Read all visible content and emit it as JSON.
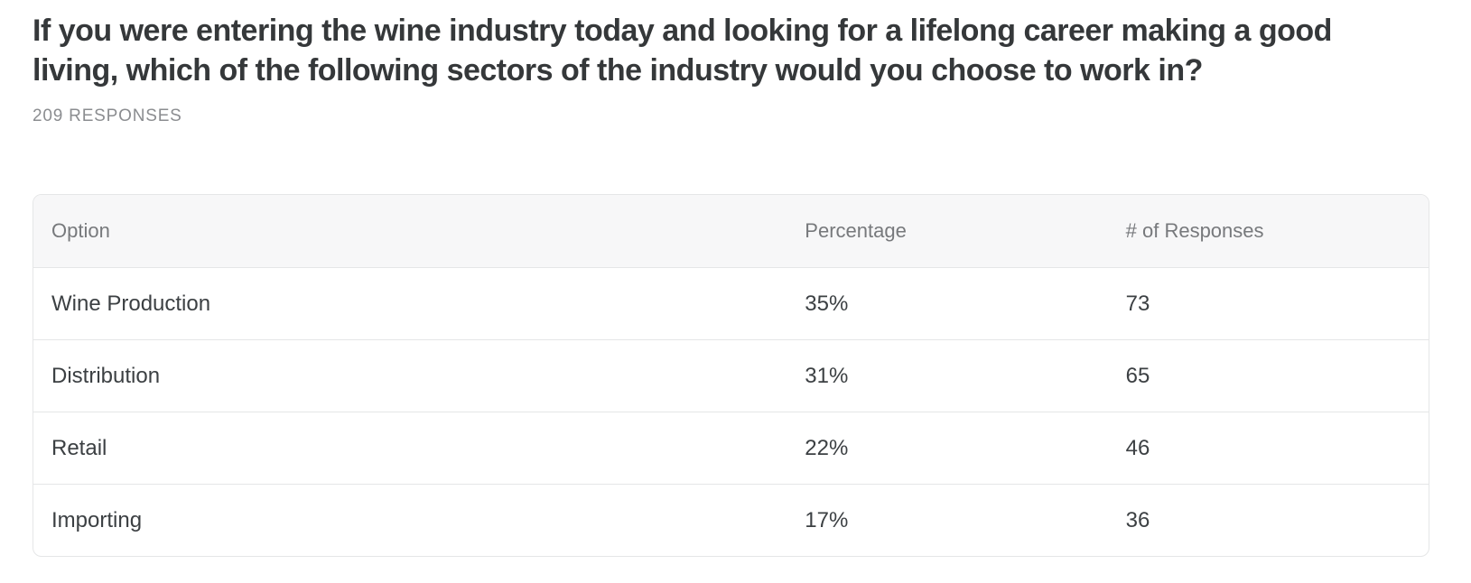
{
  "page": {
    "title_line1": "If you were entering the wine industry today and looking for a lifelong career making a good",
    "title_line2": "living, which of the following sectors of the industry would you choose to work in?",
    "responses_label": "209 RESPONSES"
  },
  "table": {
    "columns": [
      "Option",
      "Percentage",
      "# of Responses"
    ],
    "rows": [
      {
        "option": "Wine Production",
        "percentage": "35%",
        "responses": "73"
      },
      {
        "option": "Distribution",
        "percentage": "31%",
        "responses": "65"
      },
      {
        "option": "Retail",
        "percentage": "22%",
        "responses": "46"
      },
      {
        "option": "Importing",
        "percentage": "17%",
        "responses": "36"
      }
    ]
  },
  "colors": {
    "title": "#35383a",
    "subtitle": "#8b8d90",
    "header_text": "#77797c",
    "cell_text": "#3c4043",
    "border": "#e5e6e7",
    "header_bg": "#f7f7f8",
    "background": "#ffffff"
  },
  "chart_data": {
    "type": "table",
    "title": "If you were entering the wine industry today and looking for a lifelong career making a good living, which of the following sectors of the industry would you choose to work in?",
    "subtitle": "209 RESPONSES",
    "total_responses": 209,
    "columns": [
      "Option",
      "Percentage",
      "# of Responses"
    ],
    "categories": [
      "Wine Production",
      "Distribution",
      "Retail",
      "Importing"
    ],
    "series": [
      {
        "name": "Percentage",
        "values": [
          35,
          31,
          22,
          17
        ],
        "unit": "%"
      },
      {
        "name": "# of Responses",
        "values": [
          73,
          65,
          46,
          36
        ]
      }
    ]
  }
}
